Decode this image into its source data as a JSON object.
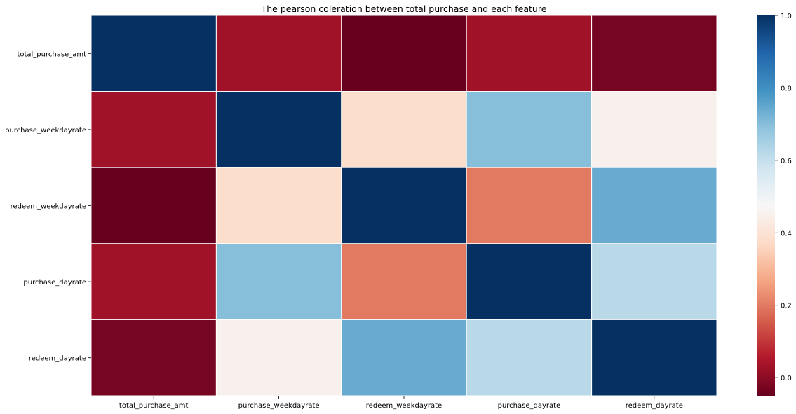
{
  "chart_data": {
    "type": "heatmap",
    "title": "The pearson coleration between total purchase and each feature",
    "rows": [
      "total_purchase_amt",
      "purchase_weekdayrate",
      "redeem_weekdayrate",
      "purchase_dayrate",
      "redeem_dayrate"
    ],
    "columns": [
      "total_purchase_amt",
      "purchase_weekdayrate",
      "redeem_weekdayrate",
      "purchase_dayrate",
      "redeem_dayrate"
    ],
    "values": [
      [
        1.0,
        0.03,
        -0.05,
        0.03,
        -0.03
      ],
      [
        0.03,
        1.0,
        0.38,
        0.7,
        0.45
      ],
      [
        -0.05,
        0.38,
        1.0,
        0.2,
        0.74
      ],
      [
        0.03,
        0.7,
        0.2,
        1.0,
        0.62
      ],
      [
        -0.03,
        0.45,
        0.74,
        0.62,
        1.0
      ]
    ],
    "colorscale": "RdBu",
    "colorbar": {
      "range": [
        -0.05,
        1.0
      ],
      "ticks": [
        "0.0",
        "0.2",
        "0.4",
        "0.6",
        "0.8",
        "1.0"
      ]
    }
  }
}
